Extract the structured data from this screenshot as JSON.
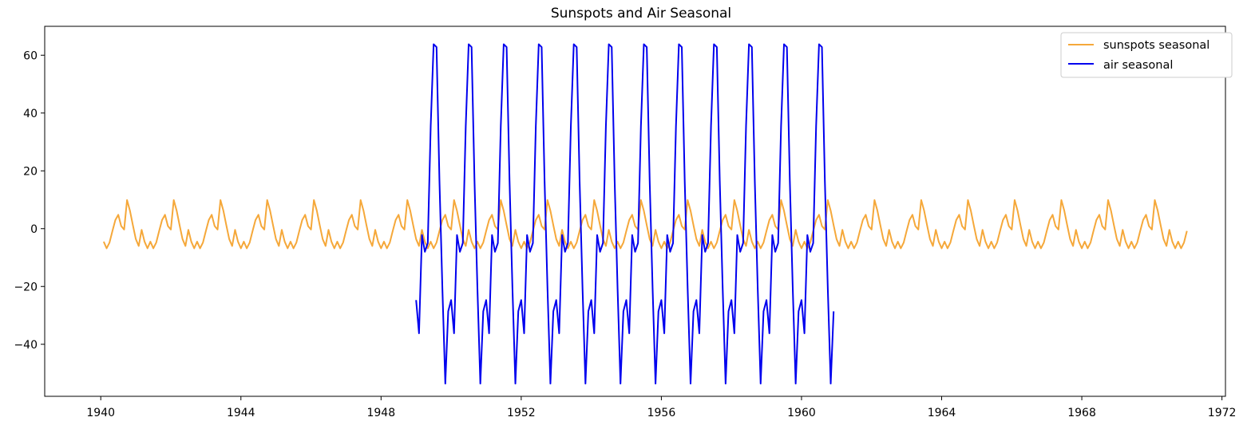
{
  "chart_data": {
    "type": "line",
    "title": "Sunspots and Air Seasonal",
    "xlabel": "",
    "ylabel": "",
    "xlim": [
      1938.4,
      1972.1
    ],
    "ylim": [
      -58,
      70
    ],
    "x_ticks": [
      1940,
      1944,
      1948,
      1952,
      1956,
      1960,
      1964,
      1968,
      1972
    ],
    "y_ticks": [
      -40,
      -20,
      0,
      20,
      40,
      60
    ],
    "grid": false,
    "legend_position": "top-right",
    "series": [
      {
        "name": "sunspots seasonal",
        "color": "#f5a83a",
        "start": 1940.0833,
        "step": 0.0833333,
        "count": 372,
        "cycle": [
          -4.5,
          -6.8,
          -4.8,
          -0.8,
          3.0,
          4.8,
          0.9,
          -0.3,
          9.9,
          6.2,
          1.2,
          -3.6,
          -6.0,
          -0.4,
          -4.5,
          -6.8
        ]
      },
      {
        "name": "air seasonal",
        "color": "#0000ee",
        "start": 1949.0,
        "step": 0.0833333,
        "count": 144,
        "values_one_year": [
          -24.7,
          -36.2,
          -2.2,
          -8.0,
          -5.0,
          35.4,
          63.8,
          62.8,
          16.5,
          -20.6,
          -53.6,
          -28.6
        ]
      }
    ]
  }
}
